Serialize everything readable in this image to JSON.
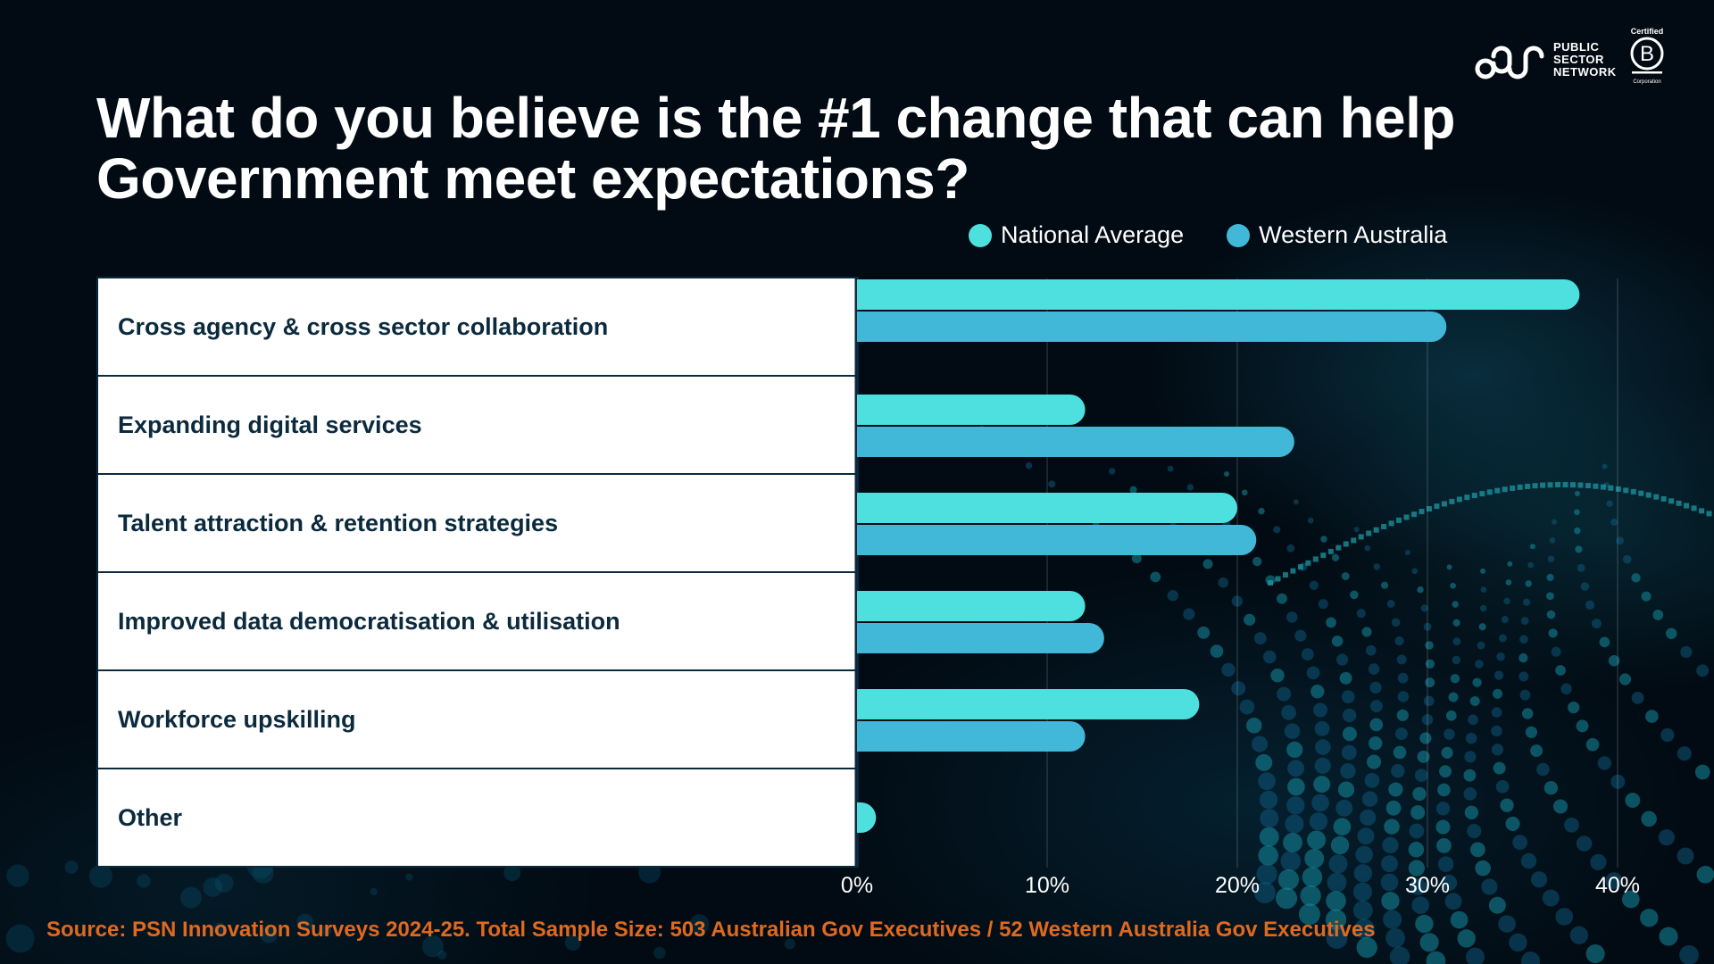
{
  "header": {
    "title": "What do you believe is the #1 change that can help Government meet expectations?",
    "logo": {
      "icon": "psn-links-icon",
      "lines": [
        "PUBLIC",
        "SECTOR",
        "NETWORK"
      ]
    },
    "bcorp": {
      "top": "Certified",
      "letter": "B",
      "bottom": "Corporation"
    }
  },
  "legend": [
    {
      "label": "National Average",
      "color": "#4de0de"
    },
    {
      "label": "Western Australia",
      "color": "#42b8d8"
    }
  ],
  "footer": {
    "source": "Source: PSN Innovation Surveys 2024-25. Total Sample Size: 503 Australian Gov Executives / 52 Western Australia Gov Executives"
  },
  "chart_data": {
    "type": "bar",
    "orientation": "horizontal",
    "title": "What do you believe is the #1 change that can help Government meet expectations?",
    "categories": [
      "Cross agency & cross sector collaboration",
      "Expanding digital services",
      "Talent attraction & retention strategies",
      "Improved data democratisation & utilisation",
      "Workforce upskilling",
      "Other"
    ],
    "series": [
      {
        "name": "National Average",
        "color": "#4de0de",
        "values": [
          38,
          12,
          20,
          12,
          18,
          1
        ]
      },
      {
        "name": "Western Australia",
        "color": "#42b8d8",
        "values": [
          31,
          23,
          21,
          13,
          12,
          0
        ]
      }
    ],
    "xlabel": "",
    "ylabel": "",
    "xlim": [
      0,
      40
    ],
    "xticks": [
      "0%",
      "10%",
      "20%",
      "30%",
      "40%"
    ],
    "grid": true,
    "legend_position": "top-right",
    "unit": "%"
  }
}
